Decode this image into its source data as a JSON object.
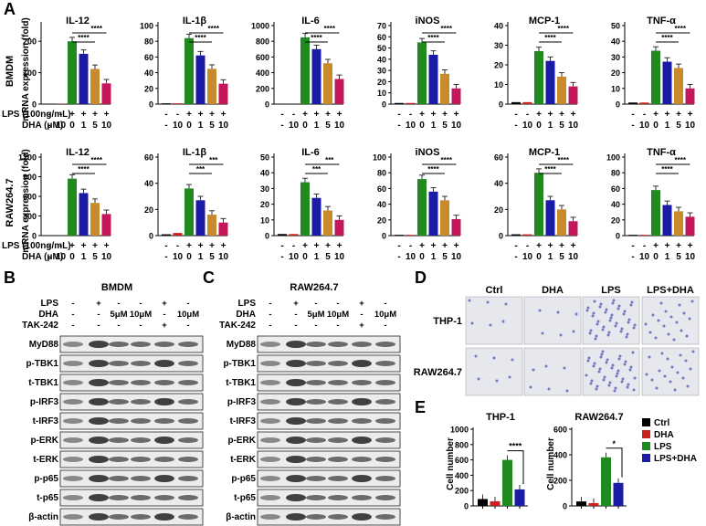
{
  "colors": {
    "ctrl": "#000000",
    "dha": "#cc1f1f",
    "lps": "#1f8a1f",
    "dha0": "#1b1ba6",
    "dha1": "#1b1ba6",
    "dha5": "#c98a2e",
    "dha10": "#c2185b"
  },
  "panelA": {
    "letter": "A",
    "rows": [
      {
        "label": "BMDM",
        "ylabel": "mRNA expression (fold)"
      },
      {
        "label": "RAW264.7",
        "ylabel": "mRNA expression (fold)"
      }
    ],
    "cond": {
      "lps_label": "LPS (100ng/mL)",
      "dha_label": "DHA (μM)",
      "lps": [
        "-",
        "-",
        "+",
        "+",
        "+",
        "+"
      ],
      "dha": [
        "-",
        "10",
        "0",
        "1",
        "5",
        "10"
      ]
    },
    "charts": [
      {
        "title": "IL-12",
        "ylim": [
          0,
          250
        ],
        "ticks": [
          "0",
          "100",
          "200"
        ],
        "values": [
          1,
          1,
          200,
          160,
          112,
          66
        ],
        "stars": [
          "****",
          "****"
        ]
      },
      {
        "title": "IL-1β",
        "ylim": [
          0,
          100
        ],
        "ticks": [
          "0",
          "20",
          "40",
          "60",
          "80",
          "100"
        ],
        "values": [
          1,
          1,
          84,
          62,
          45,
          26
        ],
        "stars": [
          "****",
          "****"
        ]
      },
      {
        "title": "IL-6",
        "ylim": [
          0,
          1000
        ],
        "ticks": [
          "0",
          "200",
          "400",
          "600",
          "800",
          "1000"
        ],
        "values": [
          1,
          1,
          850,
          700,
          520,
          320
        ],
        "stars": [
          "****",
          "****"
        ]
      },
      {
        "title": "iNOS",
        "ylim": [
          0,
          70
        ],
        "ticks": [
          "0",
          "10",
          "20",
          "30",
          "40",
          "50",
          "60",
          "70"
        ],
        "values": [
          1,
          1,
          55,
          44,
          27,
          14
        ],
        "stars": [
          "****",
          "****"
        ]
      },
      {
        "title": "MCP-1",
        "ylim": [
          0,
          40
        ],
        "ticks": [
          "0",
          "10",
          "20",
          "30",
          "40"
        ],
        "values": [
          1,
          1,
          27,
          22,
          14,
          9
        ],
        "stars": [
          "****",
          "****"
        ]
      },
      {
        "title": "TNF-α",
        "ylim": [
          0,
          50
        ],
        "ticks": [
          "0",
          "10",
          "20",
          "30",
          "40",
          "50"
        ],
        "values": [
          1,
          1,
          34,
          27,
          23,
          10
        ],
        "stars": [
          "****",
          "****"
        ]
      },
      {
        "title": "IL-12",
        "ylim": [
          0,
          1200
        ],
        "ticks": [
          "0",
          "300",
          "600",
          "900",
          "1200"
        ],
        "values": [
          1,
          1,
          870,
          650,
          500,
          330
        ],
        "stars": [
          "****",
          "****"
        ]
      },
      {
        "title": "IL-1β",
        "ylim": [
          0,
          60
        ],
        "ticks": [
          "0",
          "20",
          "40",
          "60"
        ],
        "values": [
          1,
          2,
          36,
          27,
          16,
          10
        ],
        "stars": [
          "***",
          "***"
        ]
      },
      {
        "title": "IL-6",
        "ylim": [
          0,
          50
        ],
        "ticks": [
          "0",
          "10",
          "20",
          "30",
          "40",
          "50"
        ],
        "values": [
          1,
          1,
          34,
          24,
          16,
          10
        ],
        "stars": [
          "***",
          "***"
        ]
      },
      {
        "title": "iNOS",
        "ylim": [
          0,
          100
        ],
        "ticks": [
          "0",
          "20",
          "40",
          "60",
          "80",
          "100"
        ],
        "values": [
          1,
          1,
          72,
          56,
          45,
          21
        ],
        "stars": [
          "****",
          "****"
        ]
      },
      {
        "title": "MCP-1",
        "ylim": [
          0,
          60
        ],
        "ticks": [
          "0",
          "20",
          "40",
          "60"
        ],
        "values": [
          1,
          1,
          48,
          27,
          20,
          11
        ],
        "stars": [
          "****",
          "****"
        ]
      },
      {
        "title": "TNF-α",
        "ylim": [
          0,
          100
        ],
        "ticks": [
          "0",
          "20",
          "40",
          "60",
          "80",
          "100"
        ],
        "values": [
          1,
          1,
          58,
          39,
          31,
          24
        ],
        "stars": [
          "****",
          "****"
        ]
      }
    ]
  },
  "panelB": {
    "letter": "B",
    "title": "BMDM",
    "conditions": [
      {
        "label": "LPS",
        "cols": [
          "-",
          "+",
          "-",
          "-",
          "+",
          "-"
        ]
      },
      {
        "label": "DHA",
        "cols": [
          "-",
          "-",
          "5μM",
          "10μM",
          "-",
          "10μM"
        ]
      },
      {
        "label": "TAK-242",
        "cols": [
          "-",
          "-",
          "-",
          "-",
          "+",
          "-"
        ]
      }
    ],
    "blots": [
      "MyD88",
      "p-TBK1",
      "t-TBK1",
      "p-IRF3",
      "t-IRF3",
      "p-ERK",
      "t-ERK",
      "p-p65",
      "t-p65",
      "β-actin"
    ]
  },
  "panelC": {
    "letter": "C",
    "title": "RAW264.7",
    "conditions": [
      {
        "label": "LPS",
        "cols": [
          "-",
          "+",
          "-",
          "-",
          "+",
          "-"
        ]
      },
      {
        "label": "DHA",
        "cols": [
          "-",
          "-",
          "5μM",
          "10μM",
          "-",
          "10μM"
        ]
      },
      {
        "label": "TAK-242",
        "cols": [
          "-",
          "-",
          "-",
          "-",
          "+",
          "-"
        ]
      }
    ],
    "blots": [
      "MyD88",
      "p-TBK1",
      "t-TBK1",
      "p-IRF3",
      "t-IRF3",
      "p-ERK",
      "t-ERK",
      "p-p65",
      "t-p65",
      "β-actin"
    ]
  },
  "panelD": {
    "letter": "D",
    "columns": [
      "Ctrl",
      "DHA",
      "LPS",
      "LPS+DHA"
    ],
    "rows": [
      "THP-1",
      "RAW264.7"
    ]
  },
  "panelE": {
    "letter": "E",
    "ylabel": "Cell number",
    "legend": [
      "Ctrl",
      "DHA",
      "LPS",
      "LPS+DHA"
    ],
    "charts": [
      {
        "title": "THP-1",
        "ylim": [
          0,
          1000
        ],
        "ticks": [
          "0",
          "200",
          "400",
          "600",
          "800",
          "1000"
        ],
        "values": [
          90,
          60,
          600,
          215
        ],
        "stars": "****"
      },
      {
        "title": "RAW264.7",
        "ylim": [
          0,
          600
        ],
        "ticks": [
          "0",
          "200",
          "400",
          "600"
        ],
        "values": [
          35,
          22,
          380,
          180
        ],
        "stars": "*"
      }
    ]
  }
}
